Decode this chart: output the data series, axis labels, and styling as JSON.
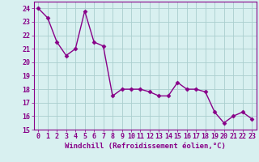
{
  "x": [
    0,
    1,
    2,
    3,
    4,
    5,
    6,
    7,
    8,
    9,
    10,
    11,
    12,
    13,
    14,
    15,
    16,
    17,
    18,
    19,
    20,
    21,
    22,
    23
  ],
  "y": [
    24.0,
    23.3,
    21.5,
    20.5,
    21.0,
    23.8,
    21.5,
    21.2,
    17.5,
    18.0,
    18.0,
    18.0,
    17.8,
    17.5,
    17.5,
    18.5,
    18.0,
    18.0,
    17.8,
    16.3,
    15.5,
    16.0,
    16.3,
    15.8
  ],
  "line_color": "#880088",
  "marker": "D",
  "marker_size": 2.5,
  "linewidth": 1.0,
  "xlabel": "Windchill (Refroidissement éolien,°C)",
  "xlabel_fontsize": 6.5,
  "ylim": [
    15,
    24.5
  ],
  "xlim": [
    -0.5,
    23.5
  ],
  "yticks": [
    15,
    16,
    17,
    18,
    19,
    20,
    21,
    22,
    23,
    24
  ],
  "xticks": [
    0,
    1,
    2,
    3,
    4,
    5,
    6,
    7,
    8,
    9,
    10,
    11,
    12,
    13,
    14,
    15,
    16,
    17,
    18,
    19,
    20,
    21,
    22,
    23
  ],
  "grid_color": "#aacece",
  "bg_color": "#d8f0f0",
  "tick_fontsize": 6.0,
  "tick_color": "#880088",
  "spine_color": "#880088"
}
